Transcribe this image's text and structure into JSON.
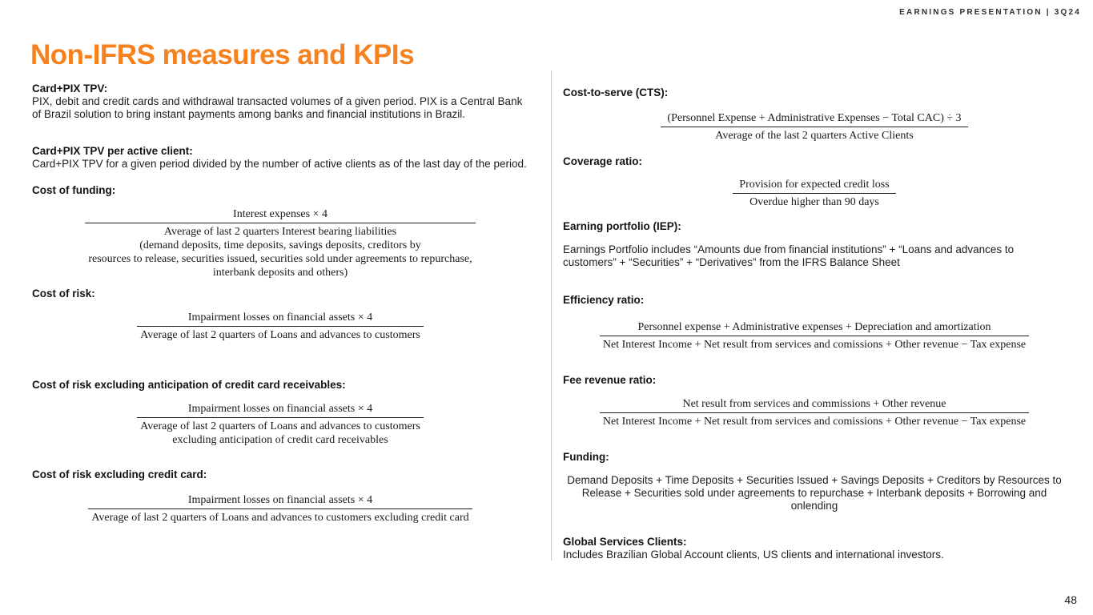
{
  "page": {
    "eyebrow": "EARNINGS PRESENTATION | 3Q24",
    "title": "Non-IFRS measures and KPIs",
    "page_number": "48"
  },
  "colors": {
    "accent_orange": "#F5821F",
    "text": "#1E1E1E",
    "divider": "#C9C9C9"
  },
  "left_column": {
    "card_pix_tpv": {
      "heading": "Card+PIX TPV:",
      "body": "PIX, debit and credit cards and withdrawal transacted volumes of a given period. PIX is a Central Bank of Brazil solution to bring instant payments among banks and financial institutions in Brazil."
    },
    "card_pix_tpv_per_active_client": {
      "heading": "Card+PIX TPV per active client:",
      "body": "Card+PIX TPV for a given period divided by the number of active clients as of the last day of the period."
    },
    "cost_of_funding": {
      "heading": "Cost of funding:",
      "formula": {
        "numerator": "Interest expenses × 4",
        "denominator": "Average of last 2 quarters Interest bearing liabilities\n(demand deposits, time deposits, savings deposits, creditors by\nresources to release, securities issued, securities sold under agreements to repurchase,\ninterbank deposits and others)"
      }
    },
    "cost_of_risk": {
      "heading": "Cost of risk:",
      "formula": {
        "numerator": "Impairment losses on financial assets × 4",
        "denominator": "Average of last 2 quarters of Loans and advances to customers"
      }
    },
    "cost_of_risk_excluding_anticipation": {
      "heading": "Cost of risk excluding anticipation of credit card receivables:",
      "formula": {
        "numerator": "Impairment losses on financial assets × 4",
        "denominator": "Average of last 2 quarters of Loans and advances to customers\nexcluding anticipation of credit card receivables"
      }
    },
    "cost_of_risk_excluding_credit_card": {
      "heading": "Cost of risk excluding credit card:",
      "formula": {
        "numerator": "Impairment losses on financial assets × 4",
        "denominator": "Average of last 2 quarters of Loans and advances to customers excluding credit card"
      }
    }
  },
  "right_column": {
    "cost_to_serve": {
      "heading": "Cost-to-serve (CTS):",
      "formula": {
        "numerator": "(Personnel Expense + Administrative Expenses − Total CAC) ÷ 3",
        "denominator": "Average of the last 2 quarters Active Clients"
      }
    },
    "coverage_ratio": {
      "heading": "Coverage ratio:",
      "formula": {
        "numerator": "Provision for expected credit loss",
        "denominator": "Overdue higher than 90 days"
      }
    },
    "earning_portfolio": {
      "heading": "Earning portfolio (IEP):",
      "body": "Earnings Portfolio includes “Amounts due from financial institutions” + “Loans and advances to customers” + “Securities” + “Derivatives” from the IFRS Balance Sheet"
    },
    "efficiency_ratio": {
      "heading": "Efficiency ratio:",
      "formula": {
        "numerator": "Personnel expense + Administrative expenses + Depreciation and amortization",
        "denominator": "Net Interest Income + Net result from services and comissions + Other revenue − Tax expense"
      }
    },
    "fee_revenue_ratio": {
      "heading": "Fee revenue ratio:",
      "formula": {
        "numerator": "Net result from services and commissions + Other revenue",
        "denominator": "Net Interest Income + Net result from services and comissions + Other revenue − Tax expense"
      }
    },
    "funding": {
      "heading": "Funding:",
      "body": "Demand Deposits + Time Deposits + Securities Issued + Savings Deposits + Creditors by Resources to Release + Securities sold under agreements to repurchase + Interbank deposits + Borrowing and onlending"
    },
    "global_services_clients": {
      "heading": "Global Services Clients:",
      "body": "Includes Brazilian Global Account clients, US clients and international investors."
    }
  }
}
